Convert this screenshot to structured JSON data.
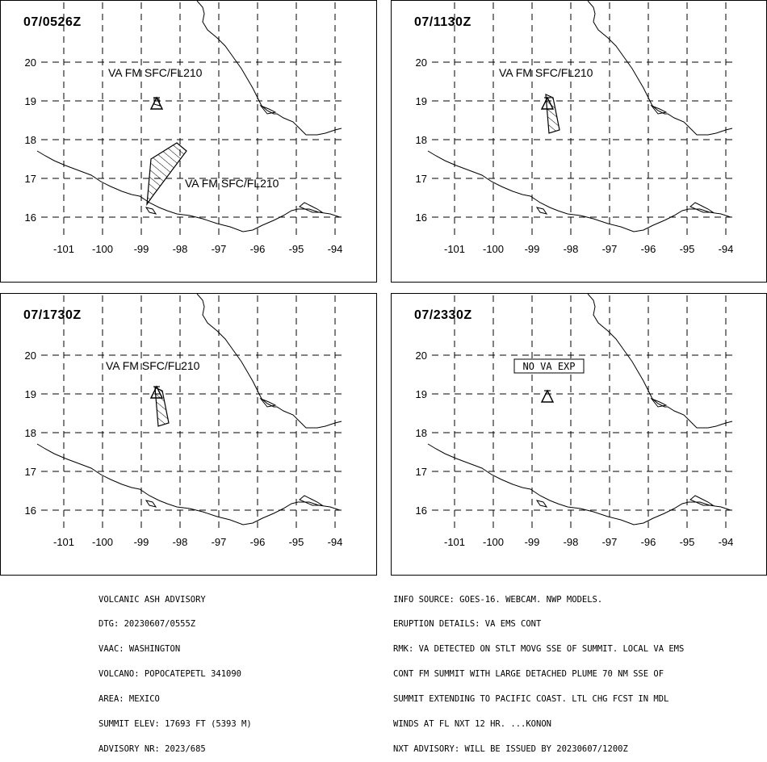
{
  "panels": [
    {
      "time": "07/0526Z",
      "labels": [
        "VA FM SFC/FL210",
        "VA FM SFC/FL210"
      ],
      "plume": "large"
    },
    {
      "time": "07/1130Z",
      "labels": [
        "VA FM SFC/FL210"
      ],
      "plume": "small"
    },
    {
      "time": "07/1730Z",
      "labels": [
        "VA FM SFC/FL210"
      ],
      "plume": "small"
    },
    {
      "time": "07/2330Z",
      "labels": [
        "NO VA EXP"
      ],
      "plume": "none"
    }
  ],
  "axes": {
    "lon_ticks": [
      "-101",
      "-100",
      "-99",
      "-98",
      "-97",
      "-96",
      "-95",
      "-94"
    ],
    "lat_ticks": [
      "20",
      "19",
      "18",
      "17",
      "16"
    ]
  },
  "icons": {
    "volcano": "volcano-icon"
  },
  "advisory_left": [
    "VOLCANIC ASH ADVISORY",
    "DTG: 20230607/0555Z",
    "VAAC: WASHINGTON",
    "VOLCANO: POPOCATEPETL 341090",
    "AREA: MEXICO",
    "SUMMIT ELEV: 17693 FT (5393 M)",
    "ADVISORY NR: 2023/685"
  ],
  "advisory_right": [
    "INFO SOURCE: GOES-16. WEBCAM. NWP MODELS.",
    "ERUPTION DETAILS: VA EMS CONT",
    "RMK: VA DETECTED ON STLT MOVG SSE OF SUMMIT. LOCAL VA EMS",
    "CONT FM SUMMIT WITH LARGE DETACHED PLUME 70 NM SSE OF",
    "SUMMIT EXTENDING TO PACIFIC COAST. LTL CHG FCST IN MDL",
    "WINDS AT FL NXT 12 HR. ...KONON",
    "NXT ADVISORY: WILL BE ISSUED BY 20230607/1200Z"
  ]
}
